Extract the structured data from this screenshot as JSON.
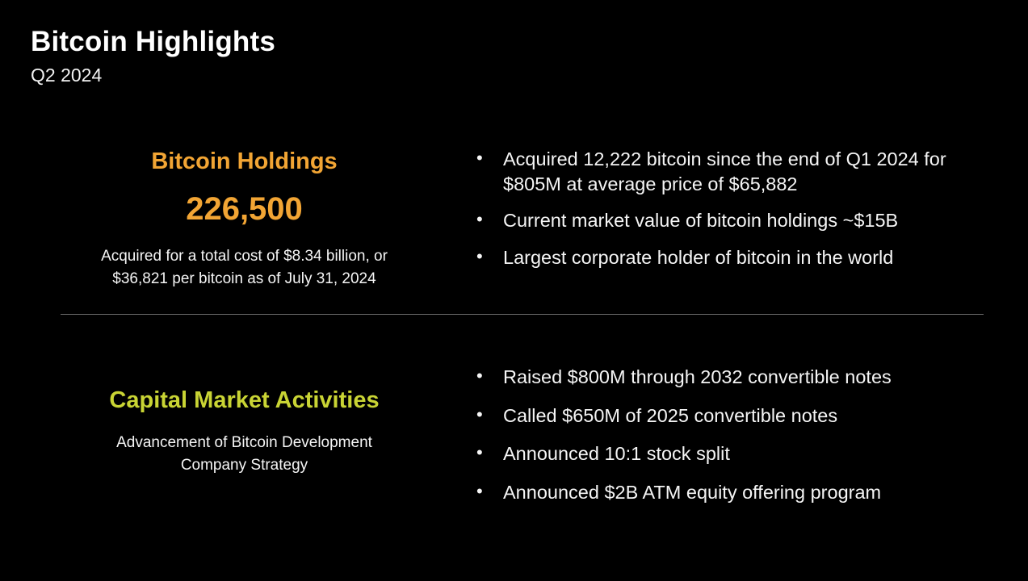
{
  "slide": {
    "title": "Bitcoin Highlights",
    "subtitle": "Q2 2024",
    "colors": {
      "background": "#000000",
      "text": "#ffffff",
      "accent_orange": "#f2a534",
      "accent_green": "#c9d434",
      "divider": "#6e6e6e"
    }
  },
  "sections": [
    {
      "heading": "Bitcoin Holdings",
      "value": "226,500",
      "caption": "Acquired for a total cost of $8.34 billion, or $36,821 per bitcoin as of July 31, 2024",
      "bullets": [
        "Acquired 12,222 bitcoin since the end of Q1 2024 for $805M at average price of $65,882",
        "Current market value of bitcoin holdings ~$15B",
        "Largest corporate holder of bitcoin in the world"
      ]
    },
    {
      "heading": "Capital Market Activities",
      "caption": "Advancement of Bitcoin Development Company Strategy",
      "bullets": [
        "Raised $800M through 2032 convertible notes",
        "Called $650M of 2025 convertible notes",
        "Announced 10:1 stock split",
        "Announced $2B ATM equity offering program"
      ]
    }
  ]
}
